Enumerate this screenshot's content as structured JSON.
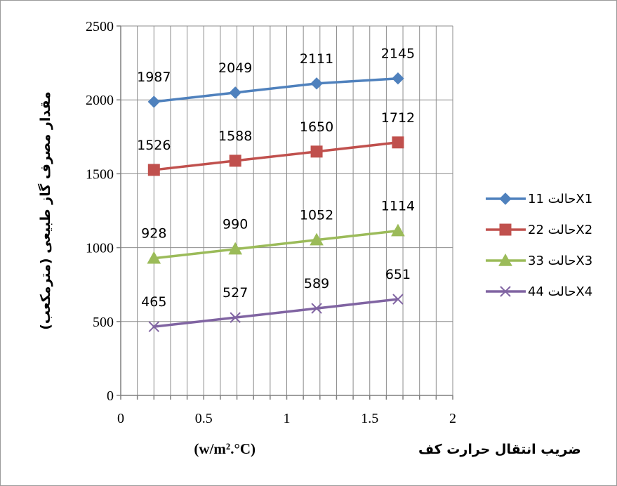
{
  "chart_data": {
    "type": "line",
    "xlabel": "ضریب انتقال حرارت کف",
    "xlabel_unit": "(w/m².°C)",
    "ylabel": "مقدار مصرف گاز طبیعی (مترمکعب)",
    "xlim": [
      0,
      2
    ],
    "ylim": [
      0,
      2500
    ],
    "x_ticks": [
      "0",
      "0.5",
      "1",
      "1.5",
      "2"
    ],
    "y_ticks": [
      "0",
      "500",
      "1000",
      "1500",
      "2000",
      "2500"
    ],
    "x_minor_step": 0.1,
    "y_major_step": 500,
    "grid": true,
    "legend_position": "right",
    "x": [
      0.2,
      0.69,
      1.18,
      1.67
    ],
    "series": [
      {
        "name": "حالت 11X1",
        "color": "#4f81bd",
        "marker": "diamond",
        "values": [
          1987,
          2049,
          2111,
          2145
        ]
      },
      {
        "name": "حالت 22X2",
        "color": "#c0504d",
        "marker": "square",
        "values": [
          1526,
          1588,
          1650,
          1712
        ]
      },
      {
        "name": "حالت 33X3",
        "color": "#9bbb59",
        "marker": "triangle",
        "values": [
          928,
          990,
          1052,
          1114
        ]
      },
      {
        "name": "حالت 44X4",
        "color": "#8064a2",
        "marker": "x",
        "values": [
          465,
          527,
          589,
          651
        ]
      }
    ]
  }
}
